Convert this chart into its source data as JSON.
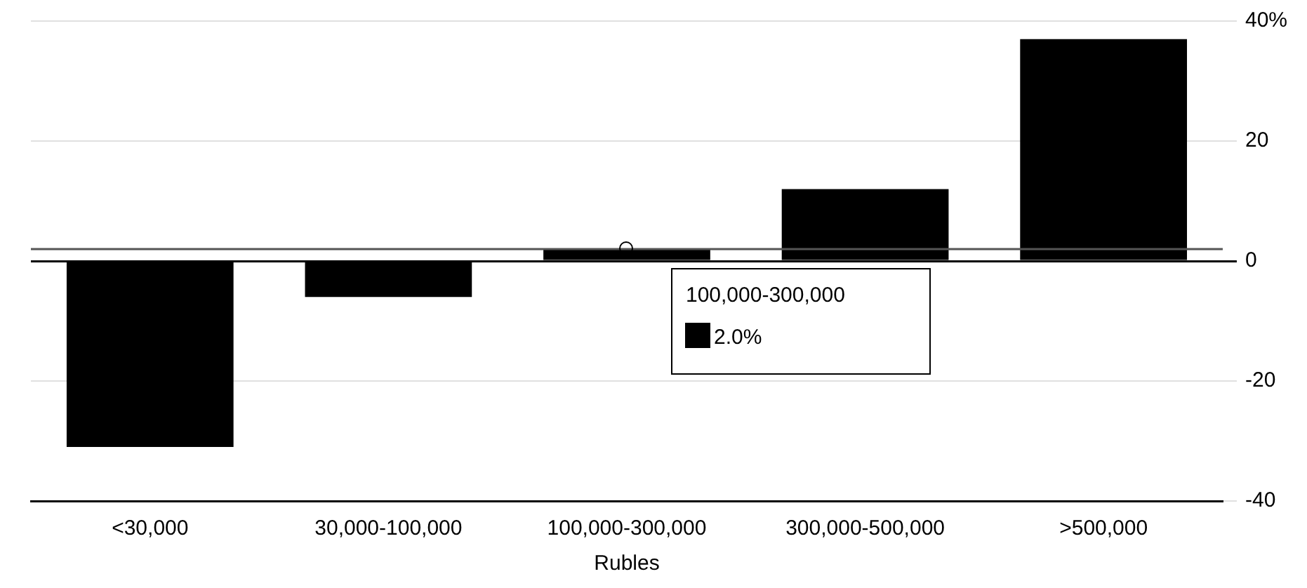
{
  "chart_data": {
    "type": "bar",
    "xlabel": "Rubles",
    "categories": [
      "<30,000",
      "30,000-100,000",
      "100,000-300,000",
      "300,000-500,000",
      ">500,000"
    ],
    "values": [
      -31,
      -6,
      2,
      12,
      37
    ],
    "color": "#000000",
    "annotations": [
      "100,000-300,000",
      "2.0%"
    ],
    "ref_lines": [
      {
        "axis": "y",
        "value": 2,
        "color": "#555555"
      }
    ],
    "ylim": [
      -40,
      40
    ],
    "yticks": [
      {
        "value": -40,
        "label": "-40"
      },
      {
        "value": -20,
        "label": "-20"
      },
      {
        "value": 0,
        "label": "0"
      },
      {
        "value": 20,
        "label": "20"
      },
      {
        "value": 40,
        "label": "40%"
      }
    ],
    "grid": "y",
    "legend": false
  }
}
